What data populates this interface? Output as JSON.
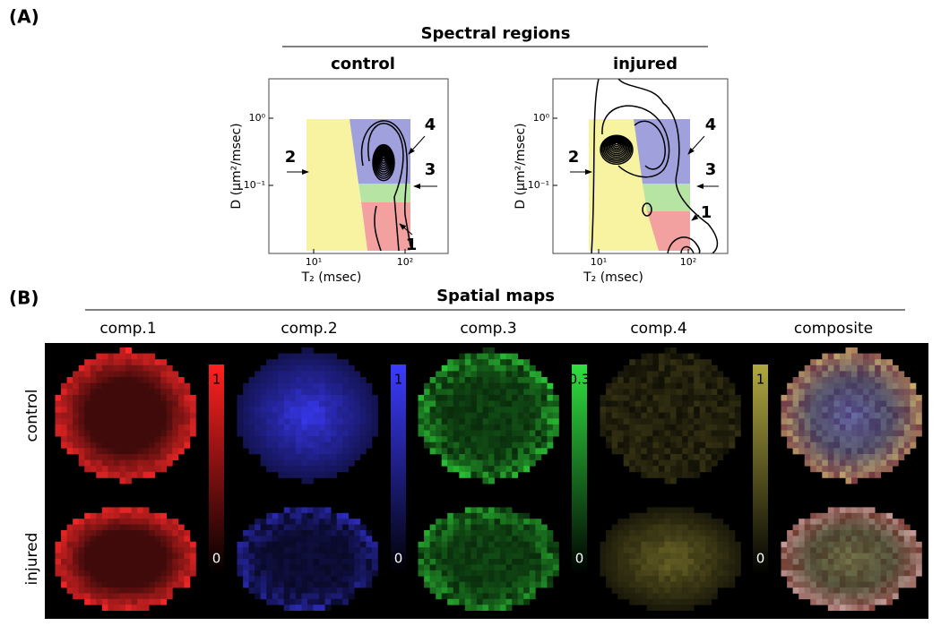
{
  "panel_a": {
    "label": "(A)",
    "title": "Spectral regions",
    "plots": [
      {
        "title": "control",
        "ylabel": "D (μm²/msec)",
        "xlabel": "T₂ (msec)",
        "yticks": [
          "10⁰",
          "10⁻¹"
        ],
        "xticks": [
          "10¹",
          "10²"
        ],
        "regions": [
          "1",
          "2",
          "3",
          "4"
        ]
      },
      {
        "title": "injured",
        "ylabel": "D (μm²/msec)",
        "xlabel": "T₂ (msec)",
        "yticks": [
          "10⁰",
          "10⁻¹"
        ],
        "xticks": [
          "10¹",
          "10²"
        ],
        "regions": [
          "1",
          "2",
          "3",
          "4"
        ]
      }
    ]
  },
  "panel_b": {
    "label": "(B)",
    "title": "Spatial maps",
    "columns": [
      "comp.1",
      "comp.2",
      "comp.3",
      "comp.4",
      "composite"
    ],
    "rows": [
      "control",
      "injured"
    ],
    "colorbars": [
      {
        "max": 1,
        "min": 0
      },
      {
        "max": 1,
        "min": 0
      },
      {
        "max": 0.3,
        "min": 0
      },
      {
        "max": 1,
        "min": 0
      }
    ]
  }
}
